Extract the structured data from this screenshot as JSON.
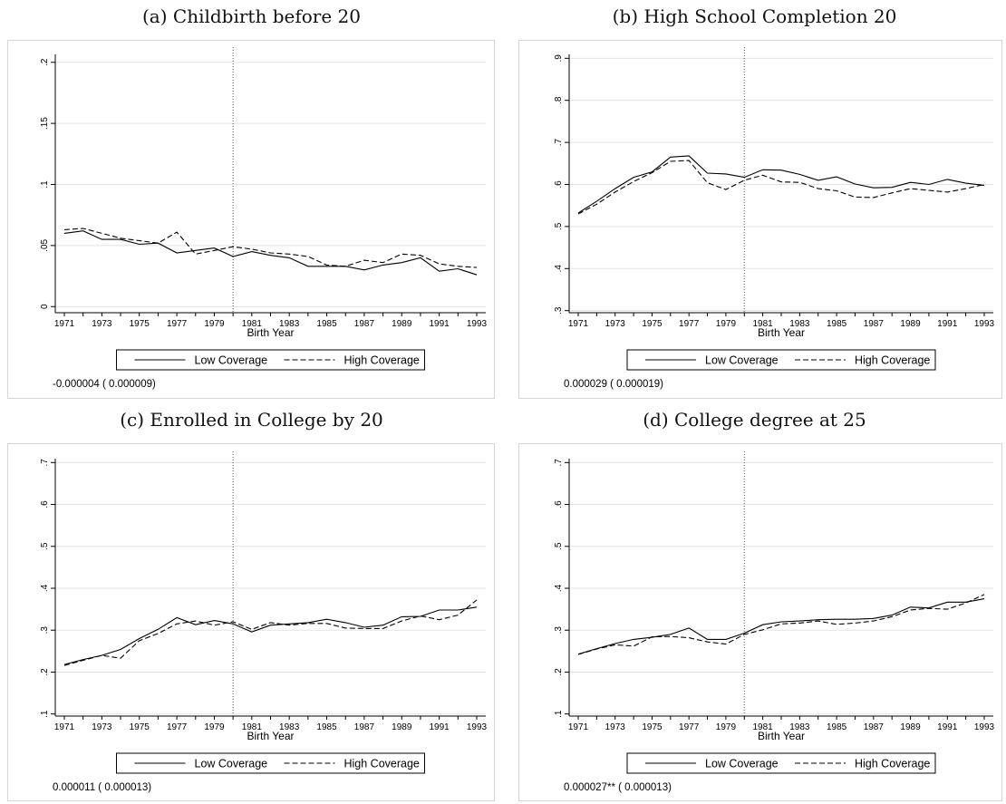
{
  "chart_data": [
    {
      "id": "a",
      "type": "line",
      "title": "(a) Childbirth before 20",
      "xlabel": "Birth Year",
      "ylabel": "",
      "x": [
        1971,
        1972,
        1973,
        1974,
        1975,
        1976,
        1977,
        1978,
        1979,
        1980,
        1981,
        1982,
        1983,
        1984,
        1985,
        1986,
        1987,
        1988,
        1989,
        1990,
        1991,
        1992,
        1993
      ],
      "x_ticks": [
        "1971",
        "1973",
        "1975",
        "1977",
        "1979",
        "1981",
        "1983",
        "1985",
        "1987",
        "1989",
        "1991",
        "1993"
      ],
      "ylim": [
        -0.005,
        0.205
      ],
      "y_ticks": [
        {
          "v": 0,
          "label": "0"
        },
        {
          "v": 0.05,
          "label": ".05"
        },
        {
          "v": 0.1,
          "label": ".1"
        },
        {
          "v": 0.15,
          "label": ".15"
        },
        {
          "v": 0.2,
          "label": ".2"
        }
      ],
      "vline": 1980,
      "grid": true,
      "legend_position": "bottom",
      "series": [
        {
          "name": "Low Coverage",
          "dash": "solid",
          "values": [
            0.06,
            0.062,
            0.055,
            0.055,
            0.051,
            0.052,
            0.044,
            0.046,
            0.048,
            0.041,
            0.045,
            0.042,
            0.04,
            0.033,
            0.033,
            0.033,
            0.03,
            0.034,
            0.036,
            0.04,
            0.029,
            0.031,
            0.026
          ]
        },
        {
          "name": "High Coverage",
          "dash": "dashed",
          "values": [
            0.063,
            0.064,
            0.06,
            0.056,
            0.054,
            0.052,
            0.061,
            0.043,
            0.046,
            0.049,
            0.047,
            0.044,
            0.043,
            0.041,
            0.034,
            0.033,
            0.038,
            0.036,
            0.043,
            0.042,
            0.035,
            0.033,
            0.032
          ]
        }
      ],
      "note": "-0.000004 ( 0.000009)"
    },
    {
      "id": "b",
      "type": "line",
      "title": "(b) High School Completion 20",
      "xlabel": "Birth Year",
      "ylabel": "",
      "x": [
        1971,
        1972,
        1973,
        1974,
        1975,
        1976,
        1977,
        1978,
        1979,
        1980,
        1981,
        1982,
        1983,
        1984,
        1985,
        1986,
        1987,
        1988,
        1989,
        1990,
        1991,
        1992,
        1993
      ],
      "x_ticks": [
        "1971",
        "1973",
        "1975",
        "1977",
        "1979",
        "1981",
        "1983",
        "1985",
        "1987",
        "1989",
        "1991",
        "1993"
      ],
      "ylim": [
        0.295,
        0.905
      ],
      "y_ticks": [
        {
          "v": 0.3,
          "label": ".3"
        },
        {
          "v": 0.4,
          "label": ".4"
        },
        {
          "v": 0.5,
          "label": ".5"
        },
        {
          "v": 0.6,
          "label": ".6"
        },
        {
          "v": 0.7,
          "label": ".7"
        },
        {
          "v": 0.8,
          "label": ".8"
        },
        {
          "v": 0.9,
          "label": ".9"
        }
      ],
      "vline": 1980,
      "grid": true,
      "legend_position": "bottom",
      "series": [
        {
          "name": "Low Coverage",
          "dash": "solid",
          "values": [
            0.532,
            0.56,
            0.59,
            0.617,
            0.63,
            0.665,
            0.668,
            0.627,
            0.625,
            0.617,
            0.635,
            0.634,
            0.624,
            0.61,
            0.618,
            0.601,
            0.592,
            0.593,
            0.605,
            0.6,
            0.612,
            0.603,
            0.598
          ]
        },
        {
          "name": "High Coverage",
          "dash": "dashed",
          "values": [
            0.53,
            0.553,
            0.582,
            0.607,
            0.628,
            0.655,
            0.657,
            0.604,
            0.588,
            0.61,
            0.622,
            0.606,
            0.605,
            0.59,
            0.585,
            0.57,
            0.569,
            0.58,
            0.59,
            0.586,
            0.582,
            0.59,
            0.6
          ]
        }
      ],
      "note": "0.000029 ( 0.000019)"
    },
    {
      "id": "c",
      "type": "line",
      "title": "(c) Enrolled in College by 20",
      "xlabel": "Birth Year",
      "ylabel": "",
      "x": [
        1971,
        1972,
        1973,
        1974,
        1975,
        1976,
        1977,
        1978,
        1979,
        1980,
        1981,
        1982,
        1983,
        1984,
        1985,
        1986,
        1987,
        1988,
        1989,
        1990,
        1991,
        1992,
        1993
      ],
      "x_ticks": [
        "1971",
        "1973",
        "1975",
        "1977",
        "1979",
        "1981",
        "1983",
        "1985",
        "1987",
        "1989",
        "1991",
        "1993"
      ],
      "ylim": [
        0.095,
        0.705
      ],
      "y_ticks": [
        {
          "v": 0.1,
          "label": ".1"
        },
        {
          "v": 0.2,
          "label": ".2"
        },
        {
          "v": 0.3,
          "label": ".3"
        },
        {
          "v": 0.4,
          "label": ".4"
        },
        {
          "v": 0.5,
          "label": ".5"
        },
        {
          "v": 0.6,
          "label": ".6"
        },
        {
          "v": 0.7,
          "label": ".7"
        }
      ],
      "vline": 1980,
      "grid": true,
      "legend_position": "bottom",
      "series": [
        {
          "name": "Low Coverage",
          "dash": "solid",
          "values": [
            0.218,
            0.23,
            0.24,
            0.254,
            0.28,
            0.302,
            0.33,
            0.313,
            0.323,
            0.315,
            0.296,
            0.312,
            0.315,
            0.318,
            0.326,
            0.318,
            0.307,
            0.312,
            0.332,
            0.333,
            0.348,
            0.348,
            0.355
          ]
        },
        {
          "name": "High Coverage",
          "dash": "dashed",
          "values": [
            0.216,
            0.228,
            0.24,
            0.233,
            0.275,
            0.292,
            0.315,
            0.322,
            0.312,
            0.32,
            0.302,
            0.318,
            0.312,
            0.316,
            0.316,
            0.305,
            0.304,
            0.304,
            0.322,
            0.334,
            0.325,
            0.336,
            0.372
          ]
        }
      ],
      "note": "0.000011 ( 0.000013)"
    },
    {
      "id": "d",
      "type": "line",
      "title": "(d) College degree at 25",
      "xlabel": "Birth Year",
      "ylabel": "",
      "x": [
        1971,
        1972,
        1973,
        1974,
        1975,
        1976,
        1977,
        1978,
        1979,
        1980,
        1981,
        1982,
        1983,
        1984,
        1985,
        1986,
        1987,
        1988,
        1989,
        1990,
        1991,
        1992,
        1993
      ],
      "x_ticks": [
        "1971",
        "1973",
        "1975",
        "1977",
        "1979",
        "1981",
        "1983",
        "1985",
        "1987",
        "1989",
        "1991",
        "1993"
      ],
      "ylim": [
        0.095,
        0.705
      ],
      "y_ticks": [
        {
          "v": 0.1,
          "label": ".1"
        },
        {
          "v": 0.2,
          "label": ".2"
        },
        {
          "v": 0.3,
          "label": ".3"
        },
        {
          "v": 0.4,
          "label": ".4"
        },
        {
          "v": 0.5,
          "label": ".5"
        },
        {
          "v": 0.6,
          "label": ".6"
        },
        {
          "v": 0.7,
          "label": ".7"
        }
      ],
      "vline": 1980,
      "grid": true,
      "legend_position": "bottom",
      "series": [
        {
          "name": "Low Coverage",
          "dash": "solid",
          "values": [
            0.243,
            0.256,
            0.268,
            0.278,
            0.283,
            0.29,
            0.305,
            0.278,
            0.278,
            0.293,
            0.313,
            0.32,
            0.322,
            0.325,
            0.326,
            0.326,
            0.328,
            0.336,
            0.355,
            0.353,
            0.367,
            0.367,
            0.375
          ]
        },
        {
          "name": "High Coverage",
          "dash": "dashed",
          "values": [
            0.242,
            0.255,
            0.265,
            0.262,
            0.284,
            0.285,
            0.282,
            0.272,
            0.267,
            0.29,
            0.301,
            0.315,
            0.317,
            0.322,
            0.314,
            0.317,
            0.322,
            0.332,
            0.348,
            0.352,
            0.35,
            0.365,
            0.385
          ]
        }
      ],
      "note": "0.000027** ( 0.000013)"
    }
  ]
}
